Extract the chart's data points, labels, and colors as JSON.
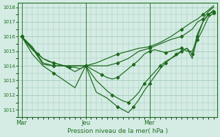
{
  "title": "",
  "xlabel": "Pression niveau de la mer( hPa )",
  "ylim": [
    1010.5,
    1018.3
  ],
  "yticks": [
    1011,
    1012,
    1013,
    1014,
    1015,
    1016,
    1017,
    1018
  ],
  "bg_color": "#d4ece4",
  "grid_color": "#9ec4b4",
  "line_color": "#1e6b1e",
  "xtick_labels": [
    "Mar",
    "Jeu",
    "Mer"
  ],
  "xtick_positions": [
    0,
    36,
    72
  ],
  "vline_positions": [
    0,
    36,
    72
  ],
  "n_total": 108,
  "series": [
    {
      "points": [
        [
          0,
          1016.0
        ],
        [
          3,
          1015.5
        ],
        [
          6,
          1015.1
        ],
        [
          9,
          1014.8
        ],
        [
          12,
          1014.5
        ],
        [
          15,
          1014.3
        ],
        [
          18,
          1014.2
        ],
        [
          21,
          1014.1
        ],
        [
          24,
          1014.0
        ],
        [
          27,
          1013.9
        ],
        [
          30,
          1013.9
        ],
        [
          33,
          1013.8
        ],
        [
          36,
          1014.0
        ],
        [
          39,
          1013.8
        ],
        [
          42,
          1013.6
        ],
        [
          45,
          1013.4
        ],
        [
          48,
          1013.2
        ],
        [
          51,
          1013.1
        ],
        [
          54,
          1013.2
        ],
        [
          57,
          1013.5
        ],
        [
          60,
          1013.8
        ],
        [
          63,
          1014.1
        ],
        [
          66,
          1014.4
        ],
        [
          69,
          1014.8
        ],
        [
          72,
          1015.0
        ],
        [
          75,
          1015.1
        ],
        [
          78,
          1015.0
        ],
        [
          81,
          1014.9
        ],
        [
          84,
          1015.0
        ],
        [
          87,
          1015.1
        ],
        [
          90,
          1015.2
        ],
        [
          93,
          1015.0
        ],
        [
          96,
          1015.0
        ],
        [
          99,
          1015.8
        ],
        [
          102,
          1016.5
        ],
        [
          105,
          1017.3
        ],
        [
          108,
          1017.6
        ]
      ]
    },
    {
      "points": [
        [
          0,
          1016.0
        ],
        [
          6,
          1015.2
        ],
        [
          12,
          1014.5
        ],
        [
          18,
          1014.2
        ],
        [
          24,
          1014.0
        ],
        [
          30,
          1013.6
        ],
        [
          36,
          1014.0
        ],
        [
          42,
          1013.0
        ],
        [
          48,
          1012.3
        ],
        [
          51,
          1012.0
        ],
        [
          54,
          1011.8
        ],
        [
          57,
          1011.6
        ],
        [
          60,
          1011.5
        ],
        [
          63,
          1011.8
        ],
        [
          66,
          1012.2
        ],
        [
          69,
          1012.8
        ],
        [
          72,
          1013.2
        ],
        [
          75,
          1013.6
        ],
        [
          78,
          1014.0
        ],
        [
          81,
          1014.3
        ],
        [
          84,
          1014.5
        ],
        [
          87,
          1014.8
        ],
        [
          90,
          1015.0
        ],
        [
          93,
          1015.2
        ],
        [
          96,
          1014.8
        ],
        [
          99,
          1016.2
        ],
        [
          102,
          1017.0
        ],
        [
          105,
          1017.5
        ],
        [
          108,
          1017.8
        ]
      ]
    },
    {
      "points": [
        [
          0,
          1016.0
        ],
        [
          6,
          1014.8
        ],
        [
          12,
          1014.0
        ],
        [
          18,
          1013.5
        ],
        [
          24,
          1013.0
        ],
        [
          30,
          1012.5
        ],
        [
          36,
          1014.0
        ],
        [
          42,
          1012.2
        ],
        [
          48,
          1011.8
        ],
        [
          54,
          1011.2
        ],
        [
          57,
          1011.0
        ],
        [
          60,
          1010.8
        ],
        [
          63,
          1011.2
        ],
        [
          66,
          1011.7
        ],
        [
          69,
          1012.3
        ],
        [
          72,
          1012.8
        ],
        [
          75,
          1013.3
        ],
        [
          78,
          1013.8
        ],
        [
          81,
          1014.2
        ],
        [
          84,
          1014.5
        ],
        [
          87,
          1014.7
        ],
        [
          90,
          1015.0
        ],
        [
          93,
          1015.2
        ],
        [
          96,
          1014.5
        ],
        [
          99,
          1016.0
        ],
        [
          102,
          1017.0
        ],
        [
          105,
          1017.5
        ],
        [
          108,
          1017.7
        ]
      ]
    },
    {
      "points": [
        [
          0,
          1016.0
        ],
        [
          6,
          1015.3
        ],
        [
          12,
          1014.2
        ],
        [
          18,
          1014.0
        ],
        [
          24,
          1014.0
        ],
        [
          30,
          1014.0
        ],
        [
          36,
          1014.0
        ],
        [
          42,
          1014.0
        ],
        [
          48,
          1014.0
        ],
        [
          54,
          1014.2
        ],
        [
          60,
          1014.5
        ],
        [
          66,
          1015.0
        ],
        [
          72,
          1015.2
        ],
        [
          78,
          1015.5
        ],
        [
          84,
          1015.8
        ],
        [
          90,
          1016.0
        ],
        [
          96,
          1016.5
        ],
        [
          99,
          1017.0
        ],
        [
          102,
          1017.2
        ],
        [
          105,
          1017.7
        ],
        [
          108,
          1018.0
        ]
      ]
    },
    {
      "points": [
        [
          0,
          1016.0
        ],
        [
          6,
          1015.2
        ],
        [
          12,
          1014.1
        ],
        [
          18,
          1014.0
        ],
        [
          24,
          1014.0
        ],
        [
          30,
          1014.0
        ],
        [
          36,
          1014.0
        ],
        [
          42,
          1014.2
        ],
        [
          48,
          1014.5
        ],
        [
          54,
          1014.8
        ],
        [
          60,
          1015.0
        ],
        [
          66,
          1015.2
        ],
        [
          72,
          1015.3
        ],
        [
          78,
          1015.6
        ],
        [
          84,
          1016.0
        ],
        [
          90,
          1016.5
        ],
        [
          96,
          1017.0
        ],
        [
          99,
          1017.2
        ],
        [
          102,
          1017.5
        ],
        [
          105,
          1017.8
        ],
        [
          108,
          1018.1
        ]
      ]
    }
  ]
}
